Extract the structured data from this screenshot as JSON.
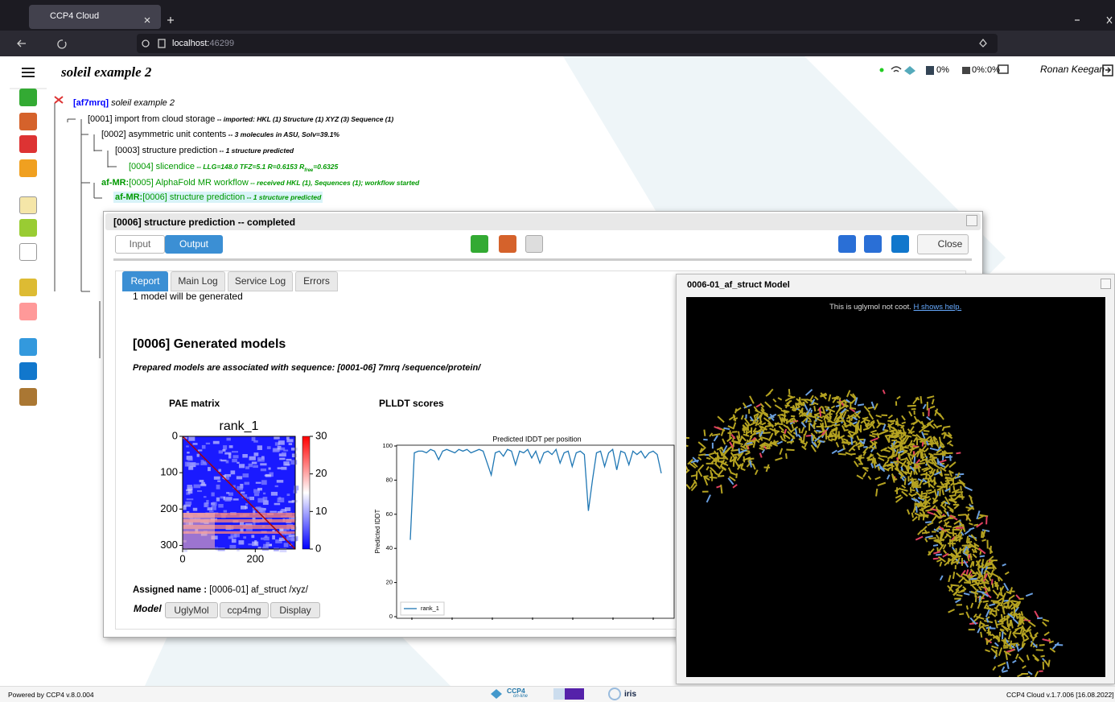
{
  "browser": {
    "tab_title": "CCP4 Cloud",
    "url_host": "localhost:",
    "url_port": "46299"
  },
  "header": {
    "project": "soleil example 2",
    "storage": "0%",
    "cpu": "0%:0%",
    "user": "Ronan Keegan"
  },
  "tree": [
    {
      "id": "[af7mrq]",
      "label": " soleil example 2"
    },
    {
      "label": "[0001] import from cloud storage",
      "note": " -- imported: HKL (1) Structure (1) XYZ (3) Sequence (1)"
    },
    {
      "label": "[0002] asymmetric unit contents",
      "note": " -- 3 molecules in ASU, Solv=39.1%"
    },
    {
      "label": "[0003] structure prediction",
      "note": " -- 1 structure predicted"
    },
    {
      "label": "[0004] slicendice",
      "note": " -- LLG=148.0 TFZ=5.1 R=0.6153 R",
      "note_sub": "free",
      "note_end": "=0.6325"
    },
    {
      "prefix": "af-MR:",
      "label": "[0005] AlphaFold MR workflow",
      "note": " -- received HKL (1), Sequences (1); workflow started"
    },
    {
      "prefix": "af-MR:",
      "label": "[0006] structure prediction",
      "note": " -- 1 structure predicted"
    }
  ],
  "dialog": {
    "title": "[0006] structure prediction -- completed",
    "mode_tabs": [
      "Input",
      "Output"
    ],
    "close": "Close",
    "report_tabs": [
      "Report",
      "Main Log",
      "Service Log",
      "Errors"
    ],
    "report": {
      "intro": "1 model will be generated",
      "heading": "[0006] Generated models",
      "sequence_note": "Prepared models are associated with sequence: [0001-06] 7mrq /sequence/protein/",
      "pae_heading": "PAE matrix",
      "plddt_heading": "PLLDT scores",
      "assigned_label": "Assigned name :",
      "assigned_value": " [0006-01] af_struct /xyz/",
      "model_label": "Model",
      "model_buttons": [
        "UglyMol",
        "ccp4mg",
        "Display"
      ]
    }
  },
  "pae": {
    "title": "rank_1",
    "xlim": [
      0,
      310
    ],
    "ylim": [
      0,
      310
    ],
    "xticks": [
      0,
      200
    ],
    "yticks": [
      0,
      100,
      200,
      300
    ],
    "clim": [
      0,
      30
    ],
    "cticks": [
      0,
      10,
      20,
      30
    ]
  },
  "chart_data": {
    "type": "line",
    "title": "Predicted IDDT per position",
    "ylabel": "Predicted IDDT",
    "ylim": [
      0,
      100
    ],
    "yticks": [
      0,
      20,
      40,
      60,
      80,
      100
    ],
    "legend": "lower left",
    "series": [
      {
        "name": "rank_1",
        "color": "#1f77b4",
        "values": [
          45,
          96,
          97,
          97,
          96,
          98,
          97,
          92,
          97,
          98,
          97,
          96,
          98,
          97,
          98,
          96,
          97,
          98,
          97,
          90,
          83,
          96,
          97,
          94,
          98,
          97,
          89,
          97,
          96,
          98,
          93,
          97,
          90,
          96,
          97,
          95,
          98,
          90,
          96,
          97,
          88,
          96,
          97,
          95,
          62,
          80,
          96,
          97,
          88,
          96,
          98,
          86,
          97,
          96,
          89,
          97,
          95,
          97,
          93,
          96,
          97,
          95,
          84
        ]
      }
    ]
  },
  "viewer": {
    "title": "0006-01_af_struct Model",
    "note": "This is uglymol not coot. ",
    "help": "H shows help."
  },
  "footer": {
    "left": "Powered by CCP4 v.8.0.004",
    "logo": "CCP4",
    "logo_sub": "on-line",
    "iris": "iris",
    "right": "CCP4 Cloud v.1.7.006 [16.08.2022]"
  }
}
